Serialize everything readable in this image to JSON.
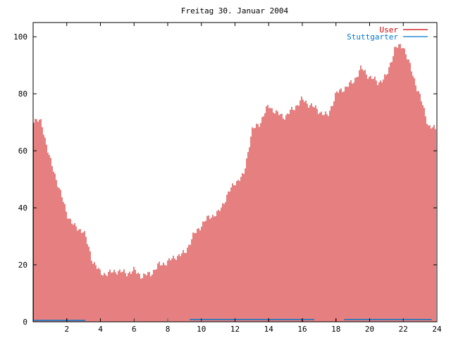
{
  "chart_data": {
    "type": "bar",
    "title": "Freitag 30. Januar 2004",
    "xlim": [
      0,
      24
    ],
    "ylim": [
      0,
      105
    ],
    "x_ticks": [
      "2",
      "4",
      "6",
      "8",
      "10",
      "12",
      "14",
      "16",
      "18",
      "20",
      "22",
      "24"
    ],
    "y_ticks": [
      "0",
      "20",
      "40",
      "60",
      "80",
      "100"
    ],
    "legend_position": "top-right",
    "grid": false,
    "series": [
      {
        "name": "User",
        "color": "#cc0000",
        "style": "impulses",
        "hours": [
          0,
          0.5,
          1,
          1.5,
          2,
          2.5,
          3,
          3.5,
          4,
          4.5,
          5,
          5.5,
          6,
          6.5,
          7,
          7.5,
          8,
          8.5,
          9,
          9.5,
          10,
          10.5,
          11,
          11.5,
          12,
          12.5,
          13,
          13.5,
          14,
          14.5,
          15,
          15.5,
          16,
          16.5,
          17,
          17.5,
          18,
          18.5,
          19,
          19.5,
          20,
          20.5,
          21,
          21.5,
          22,
          22.5,
          23,
          23.5,
          24
        ],
        "values": [
          71,
          70,
          57,
          48,
          38,
          33,
          32,
          22,
          17,
          17,
          18,
          17,
          18,
          16,
          17,
          20,
          21,
          23,
          24,
          30,
          34,
          37,
          38,
          44,
          49,
          51,
          67,
          70,
          76,
          73,
          72,
          75,
          78,
          76,
          74,
          72,
          80,
          82,
          84,
          89,
          86,
          84,
          86,
          96,
          97,
          88,
          79,
          69,
          67
        ]
      },
      {
        "name": "Stuttgarter",
        "color": "#0077cc",
        "style": "impulses",
        "segments": [
          [
            0,
            3.1,
            0.5
          ],
          [
            9.3,
            16.7,
            0.8
          ],
          [
            18.5,
            23.7,
            0.8
          ]
        ]
      }
    ]
  }
}
